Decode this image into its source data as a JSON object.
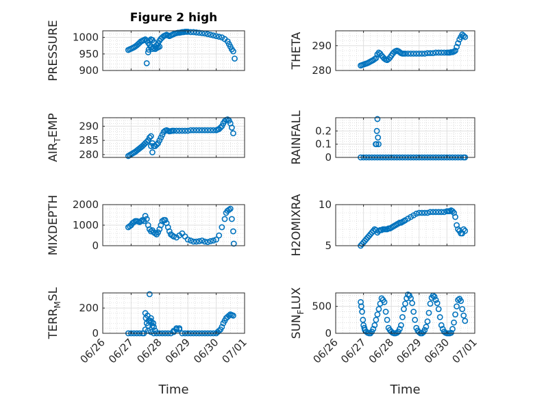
{
  "figure": {
    "title": "Figure 2 high"
  },
  "chart_data": [
    {
      "type": "scatter",
      "name": "pressure",
      "title": "Figure 2 high",
      "ylabel": "PRESSURE",
      "xlabel": "",
      "ylim": [
        900,
        1020
      ],
      "yticks": [
        900,
        950,
        1000
      ],
      "ytick_labels": [
        "900",
        "950",
        "1000"
      ],
      "xlim": [
        0,
        5
      ],
      "grid": true,
      "x": [
        0.9,
        0.95,
        1.0,
        1.05,
        1.1,
        1.15,
        1.2,
        1.25,
        1.3,
        1.35,
        1.4,
        1.45,
        1.5,
        1.55,
        1.6,
        1.65,
        1.7,
        1.75,
        1.8,
        1.85,
        1.9,
        1.95,
        2.0,
        2.05,
        2.1,
        2.15,
        2.2,
        2.25,
        2.3,
        2.35,
        2.4,
        2.45,
        2.5,
        2.55,
        2.6,
        2.65,
        2.7,
        2.75,
        2.8,
        2.85,
        2.9,
        2.95,
        3.0,
        3.1,
        3.2,
        3.3,
        3.4,
        3.5,
        3.6,
        3.7,
        3.8,
        3.9,
        4.0,
        4.1,
        4.2,
        4.3,
        4.4,
        4.45,
        4.5,
        4.55,
        4.6,
        4.65,
        1.65,
        1.7,
        1.75,
        1.6,
        1.62,
        1.85,
        1.9,
        1.95,
        2.0,
        1.55,
        1.8
      ],
      "y": [
        962,
        964,
        966,
        968,
        970,
        973,
        976,
        980,
        984,
        988,
        990,
        992,
        994,
        990,
        984,
        978,
        970,
        965,
        968,
        972,
        976,
        982,
        990,
        996,
        1000,
        1004,
        1006,
        1008,
        1006,
        1004,
        1006,
        1008,
        1010,
        1012,
        1013,
        1014,
        1014,
        1015,
        1016,
        1016,
        1017,
        1017,
        1017,
        1016,
        1016,
        1015,
        1014,
        1013,
        1012,
        1010,
        1008,
        1006,
        1004,
        1002,
        1000,
        995,
        988,
        980,
        972,
        964,
        958,
        936,
        990,
        994,
        992,
        955,
        963,
        965,
        968,
        970,
        972,
        922,
        985
      ]
    },
    {
      "type": "scatter",
      "name": "theta",
      "title": "",
      "ylabel": "THETA",
      "xlabel": "",
      "ylim": [
        280,
        296
      ],
      "yticks": [
        280,
        290
      ],
      "ytick_labels": [
        "280",
        "290"
      ],
      "xlim": [
        0,
        5
      ],
      "grid": true,
      "x": [
        0.9,
        0.95,
        1.0,
        1.05,
        1.1,
        1.15,
        1.2,
        1.25,
        1.3,
        1.35,
        1.4,
        1.45,
        1.5,
        1.55,
        1.6,
        1.65,
        1.7,
        1.75,
        1.8,
        1.85,
        1.9,
        1.95,
        2.0,
        2.05,
        2.1,
        2.15,
        2.2,
        2.25,
        2.3,
        2.35,
        2.4,
        2.45,
        2.5,
        2.6,
        2.7,
        2.8,
        2.9,
        3.0,
        3.1,
        3.2,
        3.3,
        3.4,
        3.5,
        3.6,
        3.7,
        3.8,
        3.9,
        4.0,
        4.05,
        4.1,
        4.15,
        4.2,
        4.25,
        4.3,
        4.35,
        4.4,
        4.45,
        4.5,
        4.55,
        4.6,
        4.65
      ],
      "y": [
        282.0,
        282.2,
        282.4,
        282.6,
        282.8,
        283.0,
        283.3,
        283.6,
        283.9,
        284.2,
        284.6,
        285.0,
        286.5,
        287.2,
        286.8,
        286.0,
        285.4,
        284.8,
        284.4,
        284.2,
        284.6,
        285.2,
        286.0,
        286.8,
        287.4,
        287.8,
        288.0,
        287.8,
        287.4,
        287.0,
        286.8,
        286.8,
        286.8,
        286.8,
        286.8,
        286.8,
        286.8,
        286.8,
        286.8,
        286.8,
        287.0,
        287.0,
        287.0,
        287.2,
        287.2,
        287.2,
        287.2,
        287.2,
        287.2,
        287.2,
        287.4,
        287.4,
        287.6,
        288.0,
        289.5,
        291.0,
        292.5,
        293.5,
        294.5,
        294.0,
        293.5
      ]
    },
    {
      "type": "scatter",
      "name": "air_temp",
      "title": "",
      "ylabel": "AIR_TEMP",
      "ylabel_main": "AIR",
      "ylabel_sub": "T",
      "ylabel_end": "EMP",
      "xlabel": "",
      "ylim": [
        279,
        293
      ],
      "yticks": [
        280,
        285,
        290
      ],
      "ytick_labels": [
        "280",
        "285",
        "290"
      ],
      "xlim": [
        0,
        5
      ],
      "grid": true,
      "x": [
        0.9,
        0.95,
        1.0,
        1.05,
        1.1,
        1.15,
        1.2,
        1.25,
        1.3,
        1.35,
        1.4,
        1.45,
        1.5,
        1.55,
        1.6,
        1.65,
        1.7,
        1.75,
        1.8,
        1.85,
        1.9,
        1.95,
        2.0,
        2.05,
        2.1,
        2.15,
        2.2,
        2.25,
        2.3,
        2.35,
        2.4,
        2.45,
        2.5,
        2.6,
        2.7,
        2.8,
        2.9,
        3.0,
        3.1,
        3.2,
        3.3,
        3.4,
        3.5,
        3.6,
        3.7,
        3.8,
        3.9,
        4.0,
        4.05,
        4.1,
        4.15,
        4.2,
        4.25,
        4.3,
        4.35,
        4.4,
        4.45,
        4.5,
        4.55,
        4.6,
        1.7,
        1.75
      ],
      "y": [
        279.5,
        279.8,
        280.1,
        280.4,
        280.7,
        281.0,
        281.4,
        281.8,
        282.2,
        282.6,
        283.0,
        283.5,
        284.0,
        284.5,
        285.0,
        286.0,
        286.5,
        284.0,
        283.0,
        283.0,
        283.5,
        284.0,
        285.0,
        286.0,
        287.0,
        288.0,
        288.4,
        288.6,
        288.4,
        288.2,
        288.3,
        288.4,
        288.4,
        288.4,
        288.4,
        288.4,
        288.4,
        288.4,
        288.6,
        288.6,
        288.6,
        288.6,
        288.6,
        288.6,
        288.6,
        288.6,
        288.6,
        288.6,
        288.8,
        289.0,
        289.5,
        290.0,
        291.0,
        291.8,
        292.2,
        292.4,
        292.0,
        291.0,
        289.5,
        287.5,
        283.0,
        280.8
      ]
    },
    {
      "type": "scatter",
      "name": "rainfall",
      "title": "",
      "ylabel": "RAINFALL",
      "xlabel": "",
      "ylim": [
        0,
        0.3
      ],
      "yticks": [
        0,
        0.1,
        0.2
      ],
      "ytick_labels": [
        "0",
        "0.1",
        "0.2"
      ],
      "xlim": [
        0,
        5
      ],
      "grid": true,
      "x": [
        0.9,
        1.0,
        1.1,
        1.2,
        1.3,
        1.4,
        1.5,
        1.6,
        1.7,
        1.8,
        1.9,
        2.0,
        2.1,
        2.2,
        2.3,
        2.4,
        2.5,
        2.6,
        2.7,
        2.8,
        2.9,
        3.0,
        3.1,
        3.2,
        3.3,
        3.4,
        3.5,
        3.6,
        3.7,
        3.8,
        3.9,
        4.0,
        4.1,
        4.2,
        4.3,
        4.4,
        4.5,
        4.6,
        4.65,
        1.44,
        1.46,
        1.48,
        1.5,
        1.52,
        1.54
      ],
      "y": [
        0,
        0,
        0,
        0,
        0,
        0,
        0,
        0,
        0,
        0,
        0,
        0,
        0,
        0,
        0,
        0,
        0,
        0,
        0,
        0,
        0,
        0,
        0,
        0,
        0,
        0,
        0,
        0,
        0,
        0,
        0,
        0,
        0,
        0,
        0,
        0,
        0,
        0,
        0,
        0.1,
        0.1,
        0.2,
        0.29,
        0.15,
        0.1
      ]
    },
    {
      "type": "scatter",
      "name": "mixdepth",
      "title": "",
      "ylabel": "MIXDEPTH",
      "xlabel": "",
      "ylim": [
        0,
        2000
      ],
      "yticks": [
        0,
        1000,
        2000
      ],
      "ytick_labels": [
        "0",
        "1000",
        "2000"
      ],
      "xlim": [
        0,
        5
      ],
      "grid": true,
      "x": [
        0.9,
        0.95,
        1.0,
        1.05,
        1.1,
        1.15,
        1.2,
        1.25,
        1.3,
        1.35,
        1.4,
        1.45,
        1.5,
        1.55,
        1.6,
        1.65,
        1.7,
        1.75,
        1.8,
        1.85,
        1.9,
        1.95,
        2.0,
        2.05,
        2.1,
        2.15,
        2.2,
        2.25,
        2.3,
        2.35,
        2.4,
        2.45,
        2.5,
        2.6,
        2.7,
        2.8,
        2.9,
        3.0,
        3.1,
        3.2,
        3.3,
        3.4,
        3.5,
        3.6,
        3.7,
        3.8,
        3.9,
        4.0,
        4.1,
        4.2,
        4.3,
        4.35,
        4.4,
        4.45,
        4.5,
        4.55,
        4.6,
        4.62
      ],
      "y": [
        900,
        950,
        1000,
        1100,
        1150,
        1200,
        1200,
        1180,
        1150,
        1200,
        1250,
        1200,
        1450,
        1300,
        1000,
        800,
        700,
        750,
        650,
        600,
        550,
        650,
        800,
        1000,
        1200,
        1250,
        1250,
        1100,
        900,
        700,
        550,
        500,
        450,
        400,
        500,
        600,
        450,
        300,
        250,
        200,
        200,
        220,
        250,
        200,
        180,
        220,
        250,
        300,
        500,
        900,
        1300,
        1600,
        1700,
        1750,
        1800,
        1300,
        700,
        100
      ]
    },
    {
      "type": "scatter",
      "name": "h2omixra",
      "title": "",
      "ylabel": "H2OMIXRA",
      "xlabel": "",
      "ylim": [
        5,
        10
      ],
      "yticks": [
        5,
        10
      ],
      "ytick_labels": [
        "5",
        "10"
      ],
      "xlim": [
        0,
        5
      ],
      "grid": true,
      "x": [
        0.9,
        0.95,
        1.0,
        1.05,
        1.1,
        1.15,
        1.2,
        1.25,
        1.3,
        1.35,
        1.4,
        1.45,
        1.5,
        1.55,
        1.6,
        1.65,
        1.7,
        1.75,
        1.8,
        1.85,
        1.9,
        1.95,
        2.0,
        2.05,
        2.1,
        2.15,
        2.2,
        2.25,
        2.3,
        2.35,
        2.4,
        2.45,
        2.5,
        2.6,
        2.7,
        2.8,
        2.9,
        3.0,
        3.1,
        3.2,
        3.3,
        3.4,
        3.5,
        3.6,
        3.7,
        3.8,
        3.9,
        4.0,
        4.05,
        4.1,
        4.15,
        4.2,
        4.25,
        4.3,
        4.35,
        4.4,
        4.45,
        4.5,
        4.55,
        4.6,
        4.65
      ],
      "y": [
        5.0,
        5.2,
        5.4,
        5.6,
        5.8,
        6.0,
        6.2,
        6.4,
        6.6,
        6.8,
        7.0,
        6.9,
        6.6,
        6.8,
        6.9,
        6.9,
        7.0,
        7.0,
        7.0,
        7.0,
        7.1,
        7.1,
        7.2,
        7.3,
        7.4,
        7.5,
        7.6,
        7.7,
        7.8,
        7.8,
        7.9,
        8.0,
        8.1,
        8.3,
        8.5,
        8.7,
        8.9,
        9.0,
        9.0,
        9.0,
        9.0,
        9.1,
        9.1,
        9.1,
        9.1,
        9.1,
        9.1,
        9.2,
        9.2,
        9.2,
        9.3,
        9.2,
        9.0,
        8.5,
        7.5,
        7.0,
        6.8,
        6.5,
        6.5,
        7.0,
        6.8
      ]
    },
    {
      "type": "scatter",
      "name": "terr_msl",
      "title": "",
      "ylabel": "TERR_MSL",
      "ylabel_main": "TERR",
      "ylabel_sub": "M",
      "ylabel_end": "SL",
      "xlabel": "Time",
      "ylim": [
        0,
        320
      ],
      "yticks": [
        0,
        200
      ],
      "ytick_labels": [
        "0",
        "200"
      ],
      "xlim": [
        0,
        5
      ],
      "grid": true,
      "xticks": [
        0,
        1,
        2,
        3,
        4,
        5
      ],
      "xtick_labels": [
        "06/26",
        "06/27",
        "06/28",
        "06/29",
        "06/30",
        "07/01"
      ],
      "x": [
        0.9,
        1.0,
        1.1,
        1.2,
        1.3,
        1.4,
        1.45,
        1.5,
        1.52,
        1.55,
        1.58,
        1.6,
        1.62,
        1.65,
        1.68,
        1.7,
        1.72,
        1.75,
        1.78,
        1.8,
        1.85,
        1.9,
        2.0,
        2.1,
        2.2,
        2.3,
        2.4,
        2.5,
        2.6,
        2.7,
        2.8,
        2.9,
        3.0,
        3.1,
        3.2,
        3.3,
        3.4,
        3.5,
        3.6,
        3.7,
        3.8,
        3.9,
        4.0,
        4.05,
        4.1,
        4.15,
        4.2,
        4.25,
        4.3,
        4.35,
        4.4,
        4.45,
        4.5,
        4.55,
        4.6,
        1.5,
        1.6,
        1.7,
        1.8,
        2.5,
        2.6,
        2.7
      ],
      "y": [
        0,
        0,
        0,
        0,
        0,
        0,
        0,
        160,
        120,
        80,
        140,
        60,
        100,
        310,
        100,
        120,
        90,
        60,
        80,
        50,
        20,
        0,
        0,
        0,
        0,
        0,
        0,
        20,
        40,
        30,
        0,
        0,
        0,
        0,
        0,
        0,
        0,
        0,
        0,
        0,
        0,
        0,
        0,
        10,
        20,
        30,
        50,
        80,
        100,
        120,
        130,
        140,
        150,
        145,
        140,
        30,
        20,
        10,
        0,
        10,
        30,
        40
      ]
    },
    {
      "type": "scatter",
      "name": "sun_flux",
      "title": "",
      "ylabel": "SUN_FLUX",
      "ylabel_main": "SUN",
      "ylabel_sub": "F",
      "ylabel_end": "LUX",
      "xlabel": "Time",
      "ylim": [
        0,
        750
      ],
      "yticks": [
        0,
        500
      ],
      "ytick_labels": [
        "0",
        "500"
      ],
      "xlim": [
        0,
        5
      ],
      "grid": true,
      "xticks": [
        0,
        1,
        2,
        3,
        4,
        5
      ],
      "xtick_labels": [
        "06/26",
        "06/27",
        "06/28",
        "06/29",
        "06/30",
        "07/01"
      ],
      "x": [
        0.9,
        0.92,
        0.95,
        0.98,
        1.0,
        1.03,
        1.05,
        1.1,
        1.15,
        1.2,
        1.25,
        1.3,
        1.35,
        1.4,
        1.45,
        1.5,
        1.55,
        1.6,
        1.65,
        1.7,
        1.75,
        1.8,
        1.85,
        1.9,
        1.95,
        2.0,
        2.05,
        2.1,
        2.15,
        2.2,
        2.25,
        2.3,
        2.35,
        2.4,
        2.45,
        2.5,
        2.55,
        2.6,
        2.65,
        2.7,
        2.75,
        2.8,
        2.85,
        2.9,
        2.95,
        3.0,
        3.05,
        3.1,
        3.15,
        3.2,
        3.25,
        3.3,
        3.35,
        3.4,
        3.45,
        3.5,
        3.55,
        3.6,
        3.65,
        3.7,
        3.75,
        3.8,
        3.85,
        3.9,
        3.95,
        4.0,
        4.05,
        4.1,
        4.15,
        4.2,
        4.25,
        4.3,
        4.35,
        4.4,
        4.45,
        4.5,
        4.55,
        4.6,
        4.65
      ],
      "y": [
        580,
        500,
        400,
        250,
        150,
        100,
        60,
        30,
        10,
        0,
        0,
        30,
        80,
        150,
        250,
        350,
        450,
        550,
        650,
        620,
        580,
        400,
        250,
        100,
        60,
        30,
        10,
        0,
        0,
        10,
        30,
        80,
        150,
        300,
        450,
        550,
        650,
        720,
        700,
        650,
        560,
        400,
        250,
        100,
        50,
        20,
        0,
        0,
        20,
        60,
        120,
        220,
        380,
        550,
        660,
        700,
        680,
        620,
        560,
        450,
        300,
        150,
        80,
        30,
        10,
        0,
        0,
        0,
        10,
        80,
        200,
        350,
        500,
        620,
        640,
        600,
        450,
        330,
        230
      ]
    }
  ]
}
